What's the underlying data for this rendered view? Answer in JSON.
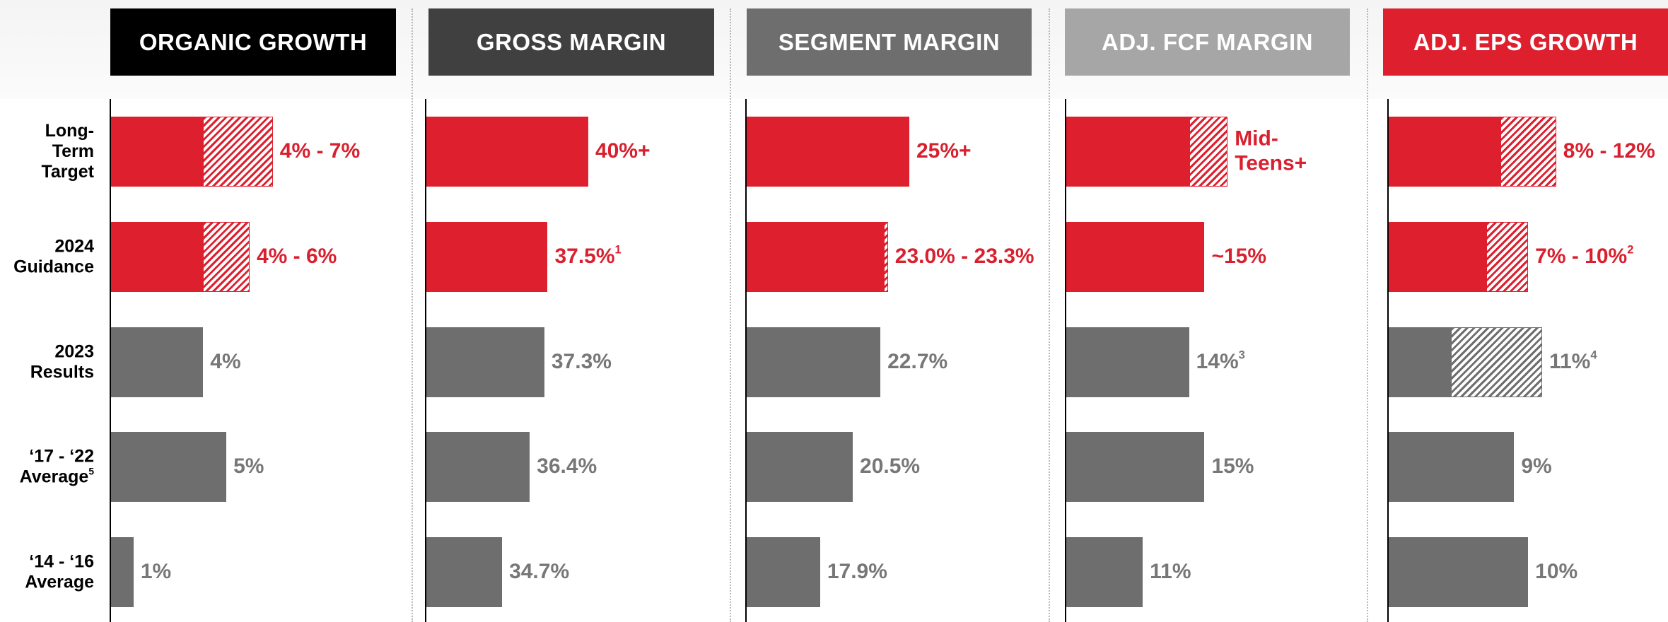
{
  "chart_data": {
    "type": "bar",
    "orientation": "horizontal",
    "categories": [
      "Long-Term Target",
      "2024 Guidance",
      "2023 Results",
      "‘17 - ‘22 Average",
      "‘14 - ‘16 Average"
    ],
    "category_notes": [
      null,
      null,
      null,
      "5",
      null
    ],
    "row_colors": [
      "#dd1f2e",
      "#dd1f2e",
      "#6e6e6e",
      "#6e6e6e",
      "#6e6e6e"
    ],
    "label_colors": [
      "#d9202e",
      "#d9202e",
      "#777777",
      "#777777",
      "#777777"
    ],
    "panels": [
      {
        "title": "ORGANIC GROWTH",
        "header_color": "#000000",
        "xlim": [
          0,
          13.1
        ],
        "low": [
          4,
          4,
          null,
          null,
          null
        ],
        "high": [
          7,
          6,
          4,
          5,
          1
        ],
        "value_labels": [
          "4% - 7%",
          "4% - 6%",
          "4%",
          "5%",
          "1%"
        ],
        "footnotes": [
          null,
          null,
          null,
          null,
          null
        ]
      },
      {
        "title": "GROSS MARGIN",
        "header_color": "#404040",
        "xlim": [
          30,
          48.7
        ],
        "low": [
          null,
          null,
          null,
          null,
          null
        ],
        "high": [
          40,
          37.5,
          37.3,
          36.4,
          34.7
        ],
        "value_labels": [
          "40%+",
          "37.5%",
          "37.3%",
          "36.4%",
          "34.7%"
        ],
        "footnotes": [
          null,
          "1",
          null,
          null,
          null
        ]
      },
      {
        "title": "SEGMENT MARGIN",
        "header_color": "#6e6e6e",
        "xlim": [
          12,
          36.2
        ],
        "low": [
          null,
          23.0,
          null,
          null,
          null
        ],
        "high": [
          25,
          23.3,
          22.7,
          20.5,
          17.9
        ],
        "value_labels": [
          "25%+",
          "23.0% - 23.3%",
          "22.7%",
          "20.5%",
          "17.9%"
        ],
        "footnotes": [
          null,
          null,
          null,
          null,
          null
        ]
      },
      {
        "title": "ADJ. FCF MARGIN",
        "header_color": "#a6a6a6",
        "xlim": [
          6,
          25.7
        ],
        "low": [
          14,
          null,
          null,
          null,
          null
        ],
        "high": [
          16.5,
          15,
          14,
          15,
          11
        ],
        "value_labels": [
          "Mid-Teens+",
          "~15%",
          "14%",
          "15%",
          "11%"
        ],
        "footnotes": [
          null,
          null,
          "3",
          null,
          null
        ]
      },
      {
        "title": "ADJ. EPS GROWTH",
        "header_color": "#dd1f2e",
        "xlim": [
          0,
          21.7
        ],
        "low": [
          8,
          7,
          4.5,
          null,
          null
        ],
        "high": [
          12,
          10,
          11,
          9,
          10
        ],
        "value_labels": [
          "8% - 12%",
          "7% - 10%",
          "11%",
          "9%",
          "10%"
        ],
        "footnotes": [
          null,
          "2",
          "4",
          null,
          null
        ]
      }
    ]
  }
}
